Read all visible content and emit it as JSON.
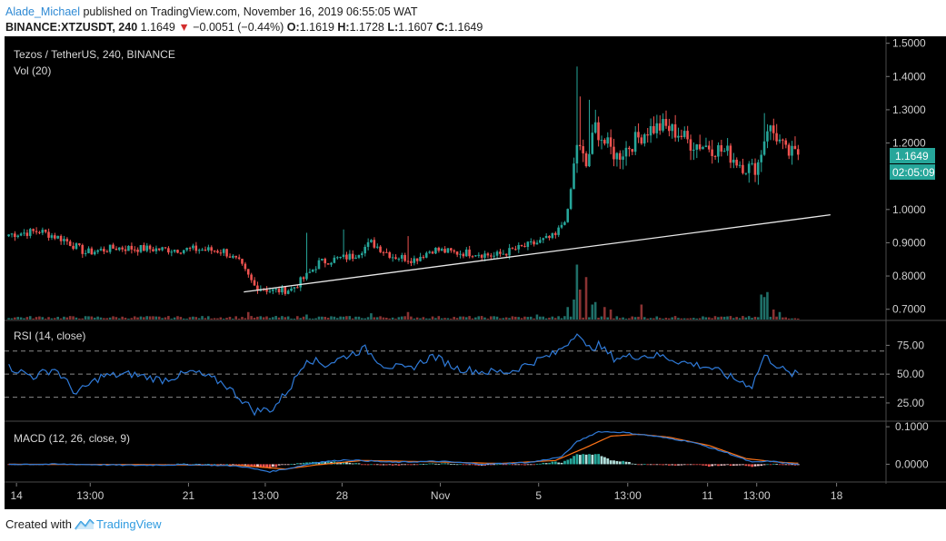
{
  "header": {
    "author": "Alade_Michael",
    "published": "published on TradingView.com, November 16, 2019 06:55:05 WAT",
    "symbol": "BINANCE:XTZUSDT, 240",
    "last": "1.1649",
    "change_arrow": "▼",
    "change": "−0.0051 (−0.44%)",
    "o_label": "O:",
    "o": "1.1619",
    "h_label": "H:",
    "h": "1.1728",
    "l_label": "L:",
    "l": "1.1607",
    "c_label": "C:",
    "c": "1.1649"
  },
  "main_pane": {
    "title": "Tezos / TetherUS, 240, BINANCE",
    "vol_label": "Vol (20)",
    "price_badge": "1.1649",
    "countdown_badge": "02:05:09"
  },
  "rsi_pane": {
    "title": "RSI (14, close)"
  },
  "macd_pane": {
    "title": "MACD (12, 26, close, 9)"
  },
  "footer": {
    "created_with": "Created with",
    "brand": "TradingView"
  },
  "colors": {
    "background": "#000000",
    "up": "#26a69a",
    "down": "#ef5350",
    "rsi_line": "#2f7ad8",
    "macd_line": "#2f7ad8",
    "signal_line": "#ff7417",
    "trendline": "#e8e8e8",
    "axis_text": "#cfcfcf"
  },
  "chart_data": [
    {
      "type": "candlestick",
      "pane": "price",
      "y_ticks": [
        "1.5000",
        "1.4000",
        "1.3000",
        "1.2000",
        "1.0000",
        "0.9000",
        "0.8000",
        "0.7000"
      ],
      "x_ticks": [
        "14",
        "13:00",
        "21",
        "13:00",
        "28",
        "Nov",
        "5",
        "13:00",
        "11",
        "13:00",
        "18"
      ],
      "ylim": [
        0.68,
        1.51
      ],
      "anchors": [
        {
          "bar": 0,
          "price": 0.925
        },
        {
          "bar": 10,
          "price": 0.935
        },
        {
          "bar": 18,
          "price": 0.91
        },
        {
          "bar": 25,
          "price": 0.87
        },
        {
          "bar": 35,
          "price": 0.885
        },
        {
          "bar": 50,
          "price": 0.88
        },
        {
          "bar": 62,
          "price": 0.88
        },
        {
          "bar": 70,
          "price": 0.875
        },
        {
          "bar": 75,
          "price": 0.84
        },
        {
          "bar": 80,
          "price": 0.77
        },
        {
          "bar": 86,
          "price": 0.755
        },
        {
          "bar": 92,
          "price": 0.76
        },
        {
          "bar": 97,
          "price": 0.8
        },
        {
          "bar": 101,
          "price": 0.84
        },
        {
          "bar": 106,
          "price": 0.85
        },
        {
          "bar": 112,
          "price": 0.86
        },
        {
          "bar": 118,
          "price": 0.9
        },
        {
          "bar": 125,
          "price": 0.86
        },
        {
          "bar": 132,
          "price": 0.85
        },
        {
          "bar": 138,
          "price": 0.88
        },
        {
          "bar": 145,
          "price": 0.87
        },
        {
          "bar": 152,
          "price": 0.87
        },
        {
          "bar": 158,
          "price": 0.86
        },
        {
          "bar": 165,
          "price": 0.88
        },
        {
          "bar": 172,
          "price": 0.9
        },
        {
          "bar": 178,
          "price": 0.92
        },
        {
          "bar": 182,
          "price": 0.99
        },
        {
          "bar": 185,
          "price": 1.2
        },
        {
          "bar": 188,
          "price": 1.13
        },
        {
          "bar": 191,
          "price": 1.25
        },
        {
          "bar": 194,
          "price": 1.2
        },
        {
          "bar": 198,
          "price": 1.16
        },
        {
          "bar": 203,
          "price": 1.2
        },
        {
          "bar": 208,
          "price": 1.24
        },
        {
          "bar": 213,
          "price": 1.25
        },
        {
          "bar": 218,
          "price": 1.23
        },
        {
          "bar": 222,
          "price": 1.2
        },
        {
          "bar": 228,
          "price": 1.19
        },
        {
          "bar": 234,
          "price": 1.17
        },
        {
          "bar": 238,
          "price": 1.14
        },
        {
          "bar": 242,
          "price": 1.12
        },
        {
          "bar": 244,
          "price": 1.14
        },
        {
          "bar": 247,
          "price": 1.25
        },
        {
          "bar": 250,
          "price": 1.22
        },
        {
          "bar": 253,
          "price": 1.17
        },
        {
          "bar": 256,
          "price": 1.165
        }
      ],
      "spikes": [
        {
          "bar": 185,
          "high": 1.43
        },
        {
          "bar": 186,
          "high": 1.34
        },
        {
          "bar": 189,
          "high": 1.33
        },
        {
          "bar": 191,
          "high": 1.3
        },
        {
          "bar": 210,
          "high": 1.28
        },
        {
          "bar": 246,
          "high": 1.29
        },
        {
          "bar": 97,
          "high": 0.93
        },
        {
          "bar": 109,
          "high": 0.94
        },
        {
          "bar": 130,
          "high": 0.92
        }
      ],
      "last_close": 1.1649,
      "trendline": {
        "from": {
          "bar": 77,
          "price": 0.752
        },
        "to": {
          "bar": 268,
          "price": 0.984
        }
      },
      "volume": {
        "base": [
          1,
          1,
          1,
          1,
          1
        ],
        "spikes": [
          {
            "bar": 182,
            "v": 5
          },
          {
            "bar": 184,
            "v": 8
          },
          {
            "bar": 185,
            "v": 22
          },
          {
            "bar": 186,
            "v": 12
          },
          {
            "bar": 188,
            "v": 17
          },
          {
            "bar": 190,
            "v": 6
          },
          {
            "bar": 191,
            "v": 7
          },
          {
            "bar": 194,
            "v": 5
          },
          {
            "bar": 196,
            "v": 4
          },
          {
            "bar": 206,
            "v": 6
          },
          {
            "bar": 245,
            "v": 10
          },
          {
            "bar": 246,
            "v": 9
          },
          {
            "bar": 247,
            "v": 11
          },
          {
            "bar": 249,
            "v": 4
          },
          {
            "bar": 251,
            "v": 3
          },
          {
            "bar": 78,
            "v": 3
          },
          {
            "bar": 97,
            "v": 2
          },
          {
            "bar": 118,
            "v": 2.5
          },
          {
            "bar": 130,
            "v": 3
          },
          {
            "bar": 172,
            "v": 2
          }
        ]
      }
    },
    {
      "type": "line",
      "pane": "rsi",
      "y_ticks": [
        "75.00",
        "50.00",
        "25.00"
      ],
      "ylim": [
        10,
        95
      ],
      "levels": [
        70,
        50,
        30
      ],
      "anchors": [
        {
          "bar": 0,
          "v": 56
        },
        {
          "bar": 8,
          "v": 48
        },
        {
          "bar": 15,
          "v": 55
        },
        {
          "bar": 22,
          "v": 33
        },
        {
          "bar": 30,
          "v": 48
        },
        {
          "bar": 40,
          "v": 50
        },
        {
          "bar": 50,
          "v": 45
        },
        {
          "bar": 60,
          "v": 52
        },
        {
          "bar": 70,
          "v": 42
        },
        {
          "bar": 75,
          "v": 30
        },
        {
          "bar": 80,
          "v": 18
        },
        {
          "bar": 86,
          "v": 20
        },
        {
          "bar": 92,
          "v": 40
        },
        {
          "bar": 97,
          "v": 64
        },
        {
          "bar": 103,
          "v": 58
        },
        {
          "bar": 110,
          "v": 66
        },
        {
          "bar": 116,
          "v": 72
        },
        {
          "bar": 122,
          "v": 58
        },
        {
          "bar": 130,
          "v": 54
        },
        {
          "bar": 138,
          "v": 66
        },
        {
          "bar": 146,
          "v": 55
        },
        {
          "bar": 155,
          "v": 52
        },
        {
          "bar": 163,
          "v": 52
        },
        {
          "bar": 170,
          "v": 60
        },
        {
          "bar": 178,
          "v": 68
        },
        {
          "bar": 183,
          "v": 80
        },
        {
          "bar": 185,
          "v": 88
        },
        {
          "bar": 188,
          "v": 72
        },
        {
          "bar": 192,
          "v": 75
        },
        {
          "bar": 197,
          "v": 64
        },
        {
          "bar": 205,
          "v": 66
        },
        {
          "bar": 212,
          "v": 66
        },
        {
          "bar": 220,
          "v": 60
        },
        {
          "bar": 228,
          "v": 56
        },
        {
          "bar": 236,
          "v": 46
        },
        {
          "bar": 242,
          "v": 40
        },
        {
          "bar": 246,
          "v": 66
        },
        {
          "bar": 250,
          "v": 58
        },
        {
          "bar": 254,
          "v": 50
        },
        {
          "bar": 257,
          "v": 50
        }
      ]
    },
    {
      "type": "line",
      "pane": "macd",
      "y_ticks": [
        "0.1000",
        "0.0000"
      ],
      "ylim": [
        -0.045,
        0.11
      ],
      "macd_anchors": [
        {
          "bar": 0,
          "v": 0.0
        },
        {
          "bar": 20,
          "v": 0.0
        },
        {
          "bar": 40,
          "v": -0.003
        },
        {
          "bar": 60,
          "v": -0.001
        },
        {
          "bar": 75,
          "v": -0.005
        },
        {
          "bar": 85,
          "v": -0.02
        },
        {
          "bar": 92,
          "v": -0.01
        },
        {
          "bar": 100,
          "v": 0.005
        },
        {
          "bar": 110,
          "v": 0.012
        },
        {
          "bar": 125,
          "v": 0.005
        },
        {
          "bar": 140,
          "v": 0.008
        },
        {
          "bar": 155,
          "v": 0.0
        },
        {
          "bar": 170,
          "v": 0.005
        },
        {
          "bar": 180,
          "v": 0.02
        },
        {
          "bar": 185,
          "v": 0.06
        },
        {
          "bar": 192,
          "v": 0.087
        },
        {
          "bar": 200,
          "v": 0.085
        },
        {
          "bar": 210,
          "v": 0.075
        },
        {
          "bar": 222,
          "v": 0.06
        },
        {
          "bar": 234,
          "v": 0.03
        },
        {
          "bar": 242,
          "v": 0.005
        },
        {
          "bar": 248,
          "v": 0.008
        },
        {
          "bar": 256,
          "v": 0.0
        }
      ],
      "signal_anchors": [
        {
          "bar": 0,
          "v": 0.0
        },
        {
          "bar": 40,
          "v": -0.001
        },
        {
          "bar": 75,
          "v": -0.003
        },
        {
          "bar": 90,
          "v": -0.013
        },
        {
          "bar": 100,
          "v": -0.002
        },
        {
          "bar": 115,
          "v": 0.01
        },
        {
          "bar": 140,
          "v": 0.006
        },
        {
          "bar": 160,
          "v": 0.002
        },
        {
          "bar": 178,
          "v": 0.01
        },
        {
          "bar": 188,
          "v": 0.045
        },
        {
          "bar": 196,
          "v": 0.075
        },
        {
          "bar": 205,
          "v": 0.08
        },
        {
          "bar": 215,
          "v": 0.072
        },
        {
          "bar": 228,
          "v": 0.05
        },
        {
          "bar": 240,
          "v": 0.015
        },
        {
          "bar": 250,
          "v": 0.006
        },
        {
          "bar": 256,
          "v": 0.003
        }
      ]
    }
  ]
}
